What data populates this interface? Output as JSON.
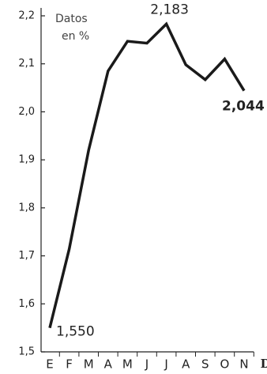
{
  "chart_data": {
    "type": "line",
    "annotations": [
      "Datos",
      "en %"
    ],
    "categories": [
      "E",
      "F",
      "M",
      "A",
      "M",
      "J",
      "J",
      "A",
      "S",
      "O",
      "N",
      "D"
    ],
    "values": [
      1.55,
      1.714,
      1.92,
      2.085,
      2.147,
      2.143,
      2.183,
      2.098,
      2.067,
      2.11,
      2.044,
      null
    ],
    "value_labels": [
      "1,550",
      null,
      null,
      null,
      null,
      null,
      "2,183",
      null,
      null,
      null,
      "2,044",
      null
    ],
    "color": "#1a1a1a",
    "ylim": [
      1.5,
      2.2
    ],
    "yticks": [
      {
        "value": 1.5,
        "label": "1,5"
      },
      {
        "value": 1.6,
        "label": "1,6"
      },
      {
        "value": 1.7,
        "label": "1,7"
      },
      {
        "value": 1.8,
        "label": "1,8"
      },
      {
        "value": 1.9,
        "label": "1,9"
      },
      {
        "value": 2.0,
        "label": "2,0"
      },
      {
        "value": 2.1,
        "label": "2,1"
      },
      {
        "value": 2.2,
        "label": "2,2"
      }
    ],
    "grid": false
  }
}
